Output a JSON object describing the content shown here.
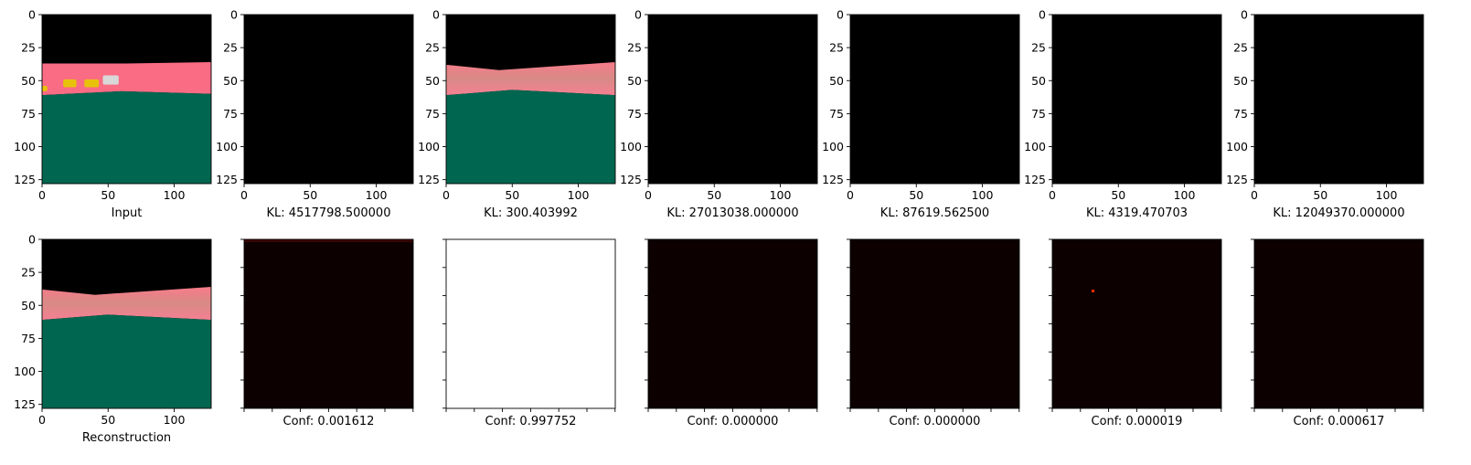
{
  "chart_data": [
    {
      "type": "heatmap",
      "image": "input",
      "xlabel": "Input",
      "x_ticks": [
        "0",
        "50",
        "100"
      ],
      "y_ticks": [
        "0",
        "25",
        "50",
        "75",
        "100",
        "125"
      ],
      "xlim": [
        0,
        128
      ],
      "ylim": [
        128,
        0
      ],
      "show_x_tick_labels": true,
      "show_y_tick_labels": true
    },
    {
      "type": "heatmap",
      "image": "black",
      "xlabel": "KL: 4517798.500000",
      "x_ticks": [
        "0",
        "50",
        "100"
      ],
      "y_ticks": [
        "0",
        "25",
        "50",
        "75",
        "100",
        "125"
      ],
      "xlim": [
        0,
        128
      ],
      "ylim": [
        128,
        0
      ],
      "show_x_tick_labels": true,
      "show_y_tick_labels": true
    },
    {
      "type": "heatmap",
      "image": "reconstruction",
      "xlabel": "KL: 300.403992",
      "x_ticks": [
        "0",
        "50",
        "100"
      ],
      "y_ticks": [
        "0",
        "25",
        "50",
        "75",
        "100",
        "125"
      ],
      "xlim": [
        0,
        128
      ],
      "ylim": [
        128,
        0
      ],
      "show_x_tick_labels": true,
      "show_y_tick_labels": true
    },
    {
      "type": "heatmap",
      "image": "black",
      "xlabel": "KL: 27013038.000000",
      "x_ticks": [
        "0",
        "50",
        "100"
      ],
      "y_ticks": [
        "0",
        "25",
        "50",
        "75",
        "100",
        "125"
      ],
      "xlim": [
        0,
        128
      ],
      "ylim": [
        128,
        0
      ],
      "show_x_tick_labels": true,
      "show_y_tick_labels": true
    },
    {
      "type": "heatmap",
      "image": "black",
      "xlabel": "KL: 87619.562500",
      "x_ticks": [
        "0",
        "50",
        "100"
      ],
      "y_ticks": [
        "0",
        "25",
        "50",
        "75",
        "100",
        "125"
      ],
      "xlim": [
        0,
        128
      ],
      "ylim": [
        128,
        0
      ],
      "show_x_tick_labels": true,
      "show_y_tick_labels": true
    },
    {
      "type": "heatmap",
      "image": "black",
      "xlabel": "KL: 4319.470703",
      "x_ticks": [
        "0",
        "50",
        "100"
      ],
      "y_ticks": [
        "0",
        "25",
        "50",
        "75",
        "100",
        "125"
      ],
      "xlim": [
        0,
        128
      ],
      "ylim": [
        128,
        0
      ],
      "show_x_tick_labels": true,
      "show_y_tick_labels": true
    },
    {
      "type": "heatmap",
      "image": "black",
      "xlabel": "KL: 12049370.000000",
      "x_ticks": [
        "0",
        "50",
        "100"
      ],
      "y_ticks": [
        "0",
        "25",
        "50",
        "75",
        "100",
        "125"
      ],
      "xlim": [
        0,
        128
      ],
      "ylim": [
        128,
        0
      ],
      "show_x_tick_labels": true,
      "show_y_tick_labels": true
    },
    {
      "type": "heatmap",
      "image": "reconstruction",
      "xlabel": "Reconstruction",
      "x_ticks": [
        "0",
        "50",
        "100"
      ],
      "y_ticks": [
        "0",
        "25",
        "50",
        "75",
        "100",
        "125"
      ],
      "xlim": [
        0,
        128
      ],
      "ylim": [
        128,
        0
      ],
      "show_x_tick_labels": true,
      "show_y_tick_labels": true
    },
    {
      "type": "heatmap",
      "image": "conf-dark",
      "xlabel": "Conf: 0.001612",
      "confidence": 0.001612,
      "x_ticks": [
        "",
        "",
        "",
        "",
        "",
        "",
        ""
      ],
      "y_ticks": [
        "",
        "",
        "",
        "",
        "",
        "",
        ""
      ],
      "show_x_tick_labels": false,
      "show_y_tick_labels": false
    },
    {
      "type": "heatmap",
      "image": "conf-white",
      "xlabel": "Conf: 0.997752",
      "confidence": 0.997752,
      "x_ticks": [
        "",
        "",
        "",
        "",
        "",
        "",
        ""
      ],
      "y_ticks": [
        "",
        "",
        "",
        "",
        "",
        "",
        ""
      ],
      "show_x_tick_labels": false,
      "show_y_tick_labels": false
    },
    {
      "type": "heatmap",
      "image": "conf-dark",
      "xlabel": "Conf: 0.000000",
      "confidence": 0.0,
      "x_ticks": [
        "",
        "",
        "",
        "",
        "",
        "",
        ""
      ],
      "y_ticks": [
        "",
        "",
        "",
        "",
        "",
        "",
        ""
      ],
      "show_x_tick_labels": false,
      "show_y_tick_labels": false
    },
    {
      "type": "heatmap",
      "image": "conf-dark",
      "xlabel": "Conf: 0.000000",
      "confidence": 0.0,
      "x_ticks": [
        "",
        "",
        "",
        "",
        "",
        "",
        ""
      ],
      "y_ticks": [
        "",
        "",
        "",
        "",
        "",
        "",
        ""
      ],
      "show_x_tick_labels": false,
      "show_y_tick_labels": false
    },
    {
      "type": "heatmap",
      "image": "conf-dark",
      "xlabel": "Conf: 0.000019",
      "confidence": 1.9e-05,
      "x_ticks": [
        "",
        "",
        "",
        "",
        "",
        "",
        ""
      ],
      "y_ticks": [
        "",
        "",
        "",
        "",
        "",
        "",
        ""
      ],
      "show_x_tick_labels": false,
      "show_y_tick_labels": false
    },
    {
      "type": "heatmap",
      "image": "conf-dark",
      "xlabel": "Conf: 0.000617",
      "confidence": 0.000617,
      "x_ticks": [
        "",
        "",
        "",
        "",
        "",
        "",
        ""
      ],
      "y_ticks": [
        "",
        "",
        "",
        "",
        "",
        "",
        ""
      ],
      "show_x_tick_labels": false,
      "show_y_tick_labels": false
    }
  ],
  "colors": {
    "sky": "#000000",
    "road": "#fa6b84",
    "road_recon": "#f27a88",
    "ground": "#006650",
    "car_yellow": "#e8c20a",
    "car_white": "#d8d8d8",
    "conf_dark": "#0d0000",
    "conf_red": "#ff2a00",
    "white": "#ffffff",
    "axis": "#000000"
  }
}
